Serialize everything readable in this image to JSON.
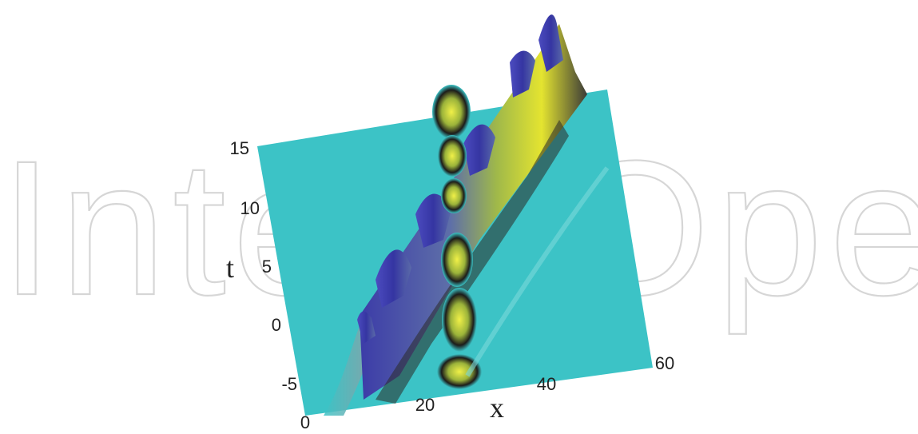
{
  "watermark": {
    "text": "IntechOpen"
  },
  "chart_data": {
    "type": "surface",
    "title": "",
    "xlabel": "x",
    "ylabel": "t",
    "zlabel": "",
    "xlim": [
      0,
      60
    ],
    "ylim": [
      -7,
      15
    ],
    "x_ticks": [
      "0",
      "20",
      "40",
      "60"
    ],
    "y_ticks": [
      "-5",
      "0",
      "5",
      "10",
      "15"
    ],
    "background_level_color": "#3cc3c6",
    "colormap": [
      "#2f2f9a",
      "#3c3caa",
      "#6070b0",
      "#a0c040",
      "#e8e830",
      "#000000"
    ],
    "grid": false,
    "legend": "none",
    "features": [
      {
        "kind": "moving-soliton-ridge",
        "description_values": {
          "x_at_t_-7": 8,
          "x_at_t_15": 45
        }
      },
      {
        "kind": "stationary-breather",
        "x_center": 27,
        "peak_t": [
          -3,
          4,
          11
        ]
      }
    ]
  }
}
